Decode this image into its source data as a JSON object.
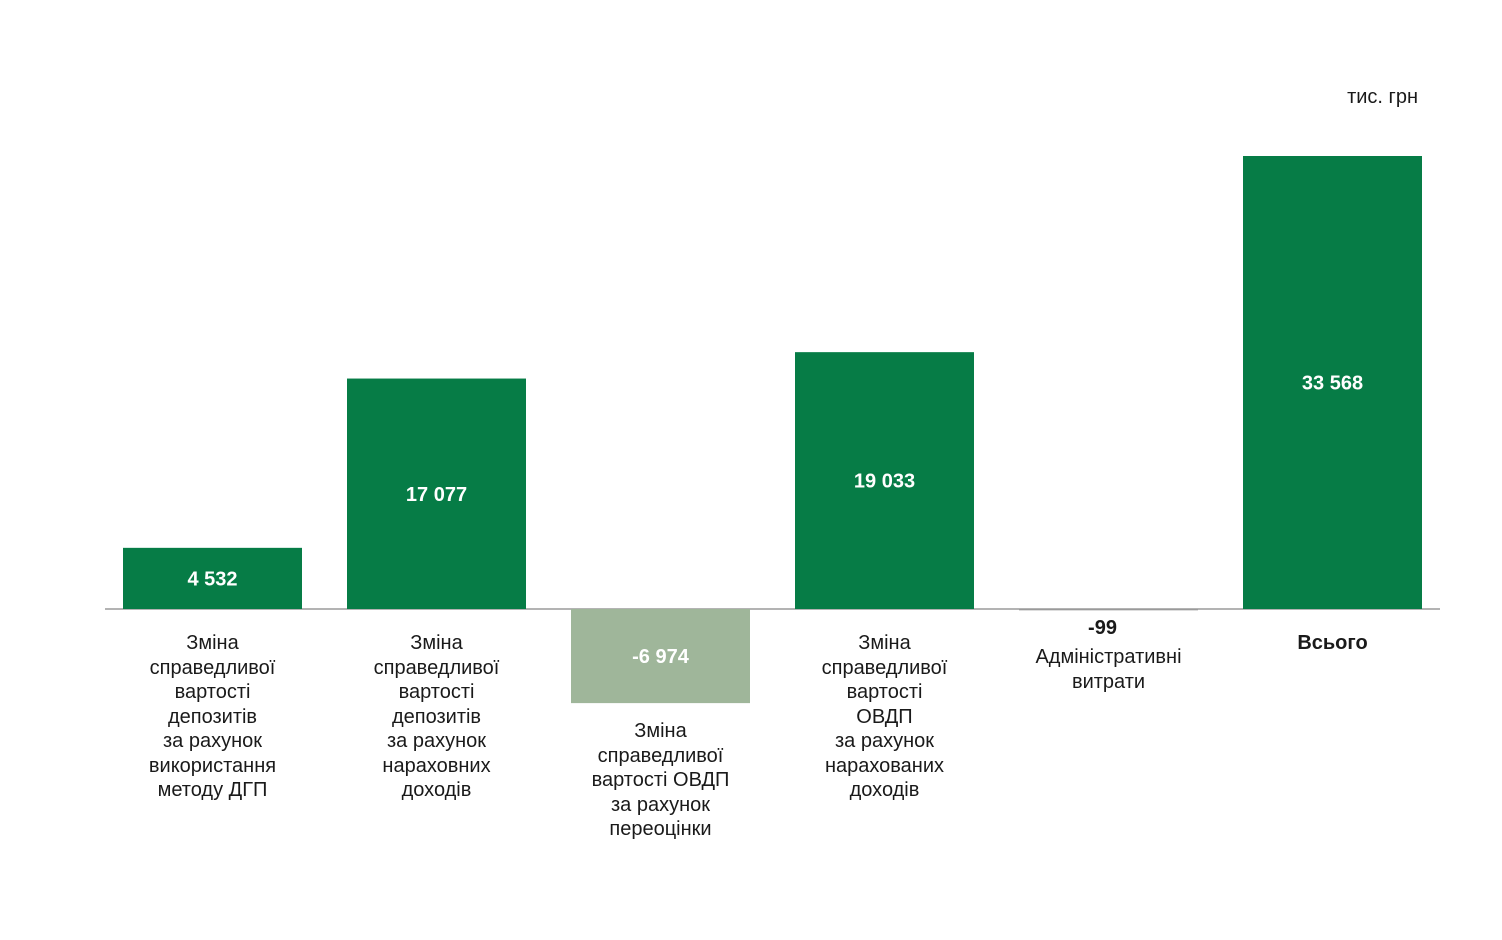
{
  "chart_data": {
    "type": "bar",
    "unit_label": "тис. грн",
    "categories": [
      "Зміна\nсправедливої\nвартості\nдепозитів\nза рахунок\nвикористання\nметоду ДГП",
      "Зміна\nсправедливої\nвартості\nдепозитів\nза рахунок\nнараховних\nдоходів",
      "Зміна\nсправедливої\nвартості ОВДП\nза рахунок\nпереоцінки",
      "Зміна\nсправедливої\nвартості\nОВДП\nза рахунок\nнарахованих\nдоходів",
      "Адміністративні\nвитрати",
      "Всього"
    ],
    "values": [
      4532,
      17077,
      -6974,
      19033,
      -99,
      33568
    ],
    "value_labels": [
      "4 532",
      "17 077",
      "-6 974",
      "19 033",
      "-99",
      "33 568"
    ],
    "colors": {
      "positive": "#067c46",
      "negative": "#9fb69a",
      "axis": "#9a9a9a",
      "label_inside": "#ffffff"
    }
  }
}
